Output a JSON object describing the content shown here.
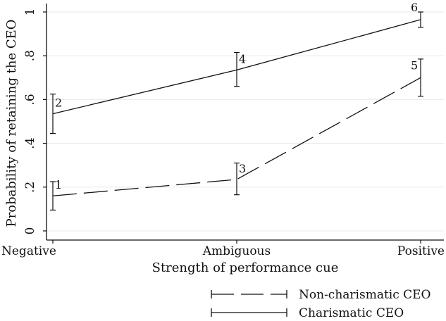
{
  "chart_data": {
    "type": "line",
    "categories": [
      "Negative",
      "Ambiguous",
      "Positive"
    ],
    "xlabel": "Strength of performance cue",
    "ylabel": "Probability of retaining the CEO",
    "ylim": [
      0,
      1
    ],
    "yticks": [
      0,
      0.2,
      0.4,
      0.6,
      0.8,
      1
    ],
    "ytick_labels": [
      "0",
      ".2",
      ".4",
      ".6",
      ".8",
      "1"
    ],
    "grid": true,
    "legend_position": "bottom-right",
    "series": [
      {
        "name": "Non-charismatic CEO",
        "line_style": "dashed",
        "values": [
          0.16,
          0.235,
          0.7
        ],
        "ci_low": [
          0.095,
          0.165,
          0.615
        ],
        "ci_high": [
          0.225,
          0.31,
          0.785
        ],
        "point_labels": [
          "1",
          "3",
          "5"
        ]
      },
      {
        "name": "Charismatic CEO",
        "line_style": "solid",
        "values": [
          0.535,
          0.735,
          0.965
        ],
        "ci_low": [
          0.445,
          0.66,
          0.93
        ],
        "ci_high": [
          0.625,
          0.815,
          1.0
        ],
        "point_labels": [
          "2",
          "4",
          "6"
        ]
      }
    ]
  }
}
